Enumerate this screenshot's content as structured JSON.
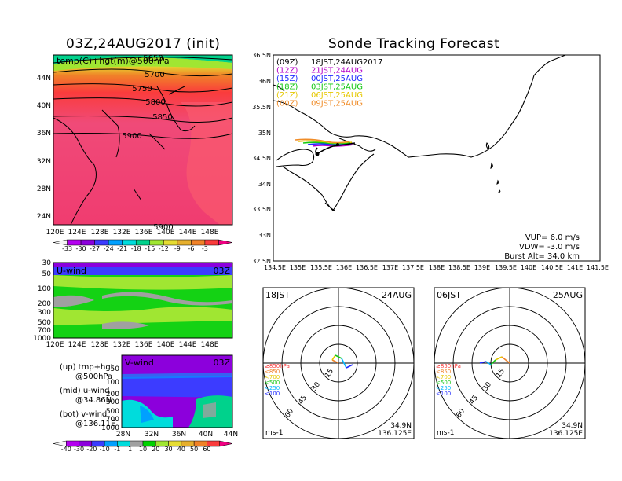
{
  "left": {
    "title": "03Z,24AUG2017  (init)",
    "map_label": "temp(C)+hgt(m)@500hPa",
    "contours": [
      "5650",
      "5700",
      "5750",
      "5800",
      "5850",
      "5900",
      "5900"
    ],
    "lat_ticks": [
      "44N",
      "40N",
      "36N",
      "32N",
      "28N",
      "24N"
    ],
    "lon_ticks": [
      "120E",
      "124E",
      "128E",
      "132E",
      "136E",
      "140E",
      "144E",
      "148E"
    ],
    "temp_scale": [
      "-33",
      "-30",
      "-27",
      "-24",
      "-21",
      "-18",
      "-15",
      "-12",
      "-9",
      "-6",
      "-3"
    ],
    "temp_colors": [
      "#f5f5f5",
      "#b400f0",
      "#8c00dc",
      "#3c3cff",
      "#00a0ff",
      "#00dcdc",
      "#00d28c",
      "#a0e632",
      "#e6dc32",
      "#e6af2d",
      "#f08228",
      "#fa3c3c",
      "#f00082"
    ],
    "uwind": {
      "label": "U-wind",
      "time": "03Z",
      "p_ticks": [
        "30",
        "50",
        "100",
        "200",
        "300",
        "500",
        "700",
        "1000"
      ],
      "lon_ticks": [
        "120E",
        "124E",
        "128E",
        "132E",
        "136E",
        "140E",
        "144E",
        "148E"
      ]
    },
    "vwind": {
      "label": "V-wind",
      "time": "03Z",
      "p_ticks": [
        "50",
        "100",
        "200",
        "300",
        "500",
        "700",
        "1000"
      ],
      "lat_ticks": [
        "28N",
        "32N",
        "36N",
        "40N",
        "44N"
      ]
    },
    "wind_scale": [
      "-40",
      "-30",
      "-20",
      "-10",
      "-1",
      "1",
      "10",
      "20",
      "30",
      "40",
      "50",
      "60"
    ],
    "wind_colors": [
      "#f5f5f5",
      "#b400f0",
      "#8c00dc",
      "#3c3cff",
      "#00a0ff",
      "#00dcdc",
      "#a0a0a0",
      "#00d200",
      "#a0e632",
      "#e6dc32",
      "#e6af2d",
      "#f08228",
      "#fa3c3c",
      "#f00082"
    ],
    "legend_lines": [
      "(up)  tmp+hgt",
      "@500hPa",
      "(mid)  u-wind",
      "@34.86N",
      "(bot)  v-wind",
      "@136.11E"
    ]
  },
  "right": {
    "title": "Sonde Tracking Forecast",
    "launches": [
      {
        "code": "(09Z)",
        "text": "18JST,24AUG2017",
        "color": "#000000"
      },
      {
        "code": "(12Z)",
        "text": "21JST,24AUG",
        "color": "#b400c8"
      },
      {
        "code": "(15Z)",
        "text": "00JST,25AUG",
        "color": "#1e28ff"
      },
      {
        "code": "(18Z)",
        "text": "03JST,25AUG",
        "color": "#14c814"
      },
      {
        "code": "(21Z)",
        "text": "06JST,25AUG",
        "color": "#e6c800"
      },
      {
        "code": "(00Z)",
        "text": "09JST,25AUG",
        "color": "#f08c28"
      }
    ],
    "lat_ticks": [
      "36.5N",
      "36N",
      "35.5N",
      "35N",
      "34.5N",
      "34N",
      "33.5N",
      "33N",
      "32.5N"
    ],
    "lon_ticks": [
      "134.5E",
      "135E",
      "135.5E",
      "136E",
      "136.5E",
      "137E",
      "137.5E",
      "138E",
      "138.5E",
      "139E",
      "139.5E",
      "140E",
      "140.5E",
      "141E",
      "141.5E"
    ],
    "params": [
      "VUP=  6.0  m/s",
      "VDW=  -3.0  m/s",
      "Burst  Alt=  34.0  km"
    ]
  },
  "hodographs": [
    {
      "time": "18JST",
      "date": "24AUG",
      "rings": [
        "15",
        "30",
        "45",
        "60"
      ],
      "levels": [
        "≥850hPa",
        "<850",
        "<700",
        "<500",
        "<250",
        "<100"
      ],
      "level_colors": [
        "#fa3c3c",
        "#f08228",
        "#e6c800",
        "#14c814",
        "#00b4ff",
        "#1e28ff"
      ],
      "unit": "ms-1",
      "lat": "34.9N",
      "lon": "136.125E"
    },
    {
      "time": "06JST",
      "date": "25AUG",
      "rings": [
        "15",
        "30",
        "45",
        "60"
      ],
      "levels": [
        "≥850hPa",
        "<850",
        "<700",
        "<500",
        "<250",
        "<100"
      ],
      "level_colors": [
        "#fa3c3c",
        "#f08228",
        "#e6c800",
        "#14c814",
        "#00b4ff",
        "#1e28ff"
      ],
      "unit": "ms-1",
      "lat": "34.9N",
      "lon": "136.125E"
    }
  ]
}
